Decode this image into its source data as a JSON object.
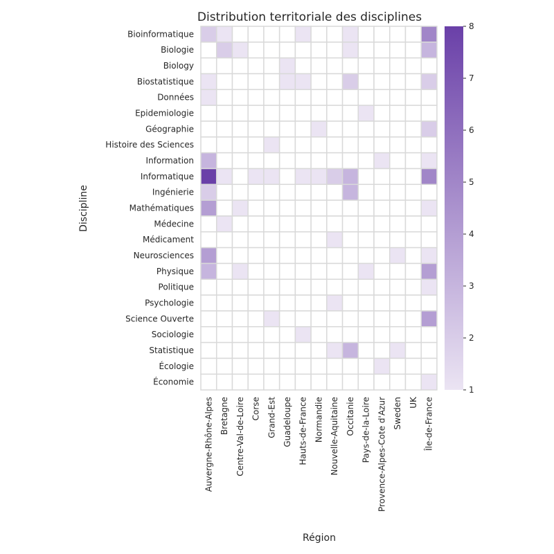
{
  "chart_data": {
    "type": "heatmap",
    "title": "Distribution territoriale des disciplines",
    "xlabel": "Région",
    "ylabel": "Discipline",
    "x": [
      "Auvergne-Rhône-Alpes",
      "Bretagne",
      "Centre-Val-de-Loire",
      "Corse",
      "Grand-Est",
      "Guadeloupe",
      "Hauts-de-France",
      "Normandie",
      "Nouvelle-Aquitaine",
      "Occitanie",
      "Pays-de-la-Loire",
      "Provence-Alpes-Cote d'Azur",
      "Sweden",
      "UK",
      "Île-de-France"
    ],
    "y": [
      "Bioinformatique ",
      "Biologie",
      "Biology",
      "Biostatistique",
      "Données",
      "Epidemiologie",
      "Géographie",
      "Histoire des Sciences",
      "Information",
      "Informatique",
      "Ingénierie",
      "Mathématiques",
      "Médecine ",
      "Médicament",
      "Neurosciences",
      "Physique",
      "Politique",
      "Psychologie",
      "Science Ouverte",
      "Sociologie ",
      "Statistique",
      "Écologie ",
      "Économie"
    ],
    "values": [
      [
        2,
        1,
        null,
        null,
        null,
        null,
        1,
        null,
        null,
        1,
        null,
        null,
        null,
        null,
        5
      ],
      [
        null,
        2,
        1,
        null,
        null,
        null,
        null,
        null,
        null,
        1,
        null,
        null,
        null,
        null,
        3
      ],
      [
        null,
        null,
        null,
        null,
        null,
        1,
        null,
        null,
        null,
        null,
        null,
        null,
        null,
        null,
        null
      ],
      [
        1,
        null,
        null,
        null,
        null,
        1,
        1,
        null,
        null,
        2,
        null,
        null,
        null,
        null,
        2
      ],
      [
        1,
        null,
        null,
        null,
        null,
        null,
        null,
        null,
        null,
        null,
        null,
        null,
        null,
        null,
        null
      ],
      [
        null,
        null,
        null,
        null,
        null,
        null,
        null,
        null,
        null,
        null,
        1,
        null,
        null,
        null,
        null
      ],
      [
        null,
        null,
        null,
        null,
        null,
        null,
        null,
        1,
        null,
        null,
        null,
        null,
        null,
        null,
        2
      ],
      [
        null,
        null,
        null,
        null,
        1,
        null,
        null,
        null,
        null,
        null,
        null,
        null,
        null,
        null,
        null
      ],
      [
        3,
        null,
        null,
        null,
        null,
        null,
        null,
        null,
        null,
        null,
        null,
        1,
        null,
        null,
        1
      ],
      [
        8,
        1,
        null,
        1,
        1,
        null,
        1,
        1,
        2,
        3,
        null,
        null,
        null,
        null,
        5
      ],
      [
        2,
        null,
        null,
        null,
        null,
        null,
        null,
        null,
        null,
        3,
        null,
        null,
        null,
        null,
        null
      ],
      [
        4,
        null,
        1,
        null,
        null,
        null,
        null,
        null,
        null,
        null,
        null,
        null,
        null,
        null,
        1
      ],
      [
        null,
        1,
        null,
        null,
        null,
        null,
        null,
        null,
        null,
        null,
        null,
        null,
        null,
        null,
        null
      ],
      [
        null,
        null,
        null,
        null,
        null,
        null,
        null,
        null,
        1,
        null,
        null,
        null,
        null,
        null,
        null
      ],
      [
        4,
        null,
        null,
        null,
        null,
        null,
        null,
        null,
        null,
        null,
        null,
        null,
        1,
        null,
        1
      ],
      [
        3,
        null,
        1,
        null,
        null,
        null,
        null,
        null,
        null,
        null,
        1,
        null,
        null,
        null,
        4
      ],
      [
        null,
        null,
        null,
        null,
        null,
        null,
        null,
        null,
        null,
        null,
        null,
        null,
        null,
        null,
        1
      ],
      [
        null,
        null,
        null,
        null,
        null,
        null,
        null,
        null,
        1,
        null,
        null,
        null,
        null,
        null,
        null
      ],
      [
        null,
        null,
        null,
        null,
        1,
        null,
        null,
        null,
        null,
        null,
        null,
        null,
        null,
        null,
        4
      ],
      [
        null,
        null,
        null,
        null,
        null,
        null,
        1,
        null,
        null,
        null,
        null,
        null,
        null,
        null,
        null
      ],
      [
        null,
        null,
        null,
        null,
        null,
        null,
        null,
        null,
        1,
        3,
        null,
        null,
        1,
        null,
        null
      ],
      [
        null,
        null,
        null,
        null,
        null,
        null,
        null,
        null,
        null,
        null,
        null,
        1,
        null,
        null,
        null
      ],
      [
        null,
        null,
        null,
        null,
        null,
        null,
        null,
        null,
        null,
        null,
        null,
        null,
        null,
        null,
        1
      ]
    ],
    "vmin": 1,
    "vmax": 8,
    "colorbar_ticks": [
      1,
      2,
      3,
      4,
      5,
      6,
      7,
      8
    ],
    "colors": {
      "low": "#ebe4f3",
      "high": "#6a40a8",
      "empty": "#ffffff",
      "grid": "#d9d9d9"
    },
    "legend": "colorbar-right"
  }
}
